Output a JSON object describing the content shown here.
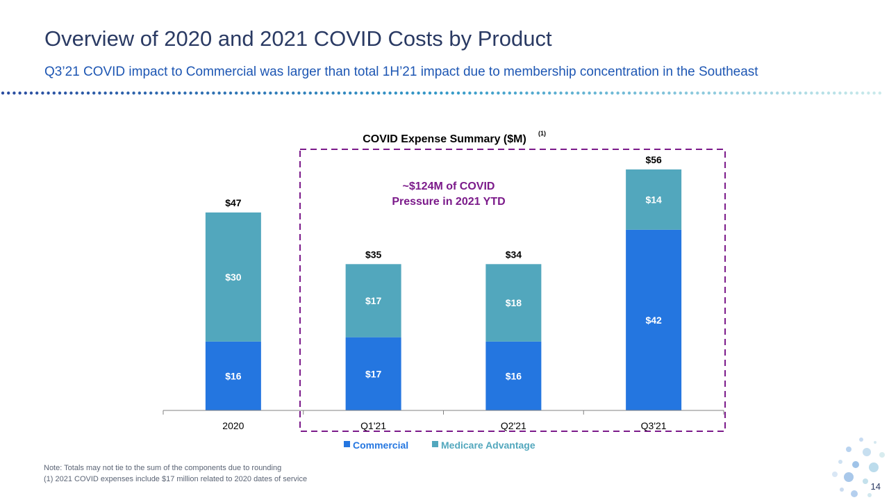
{
  "slide": {
    "title": "Overview of 2020 and 2021 COVID Costs by Product",
    "subtitle": "Q3’21 COVID impact to Commercial was larger than total 1H’21 impact due to membership concentration in the Southeast",
    "page_number": "14",
    "notes": [
      "Note: Totals may not tie to the sum of the components due to rounding",
      "(1)   2021 COVID expenses include $17 million related to 2020 dates of service"
    ]
  },
  "chart_data": {
    "type": "bar",
    "stacked": true,
    "title": "COVID Expense Summary ($M)",
    "title_footnote": "(1)",
    "categories": [
      "2020",
      "Q1'21",
      "Q2'21",
      "Q3'21"
    ],
    "series": [
      {
        "name": "Commercial",
        "values": [
          16,
          17,
          16,
          42
        ],
        "labels": [
          "$16",
          "$17",
          "$16",
          "$42"
        ],
        "color": "#2476e0"
      },
      {
        "name": "Medicare Advantage",
        "values": [
          30,
          17,
          18,
          14
        ],
        "labels": [
          "$30",
          "$17",
          "$18",
          "$14"
        ],
        "color": "#52a7bd"
      }
    ],
    "totals": [
      "$47",
      "$35",
      "$34",
      "$56"
    ],
    "annotation": {
      "lines": [
        "~$124M of COVID",
        "Pressure in 2021 YTD"
      ],
      "color": "#7b1a8a"
    },
    "legend_position": "bottom",
    "ylim": [
      0,
      60
    ],
    "grid": false
  }
}
